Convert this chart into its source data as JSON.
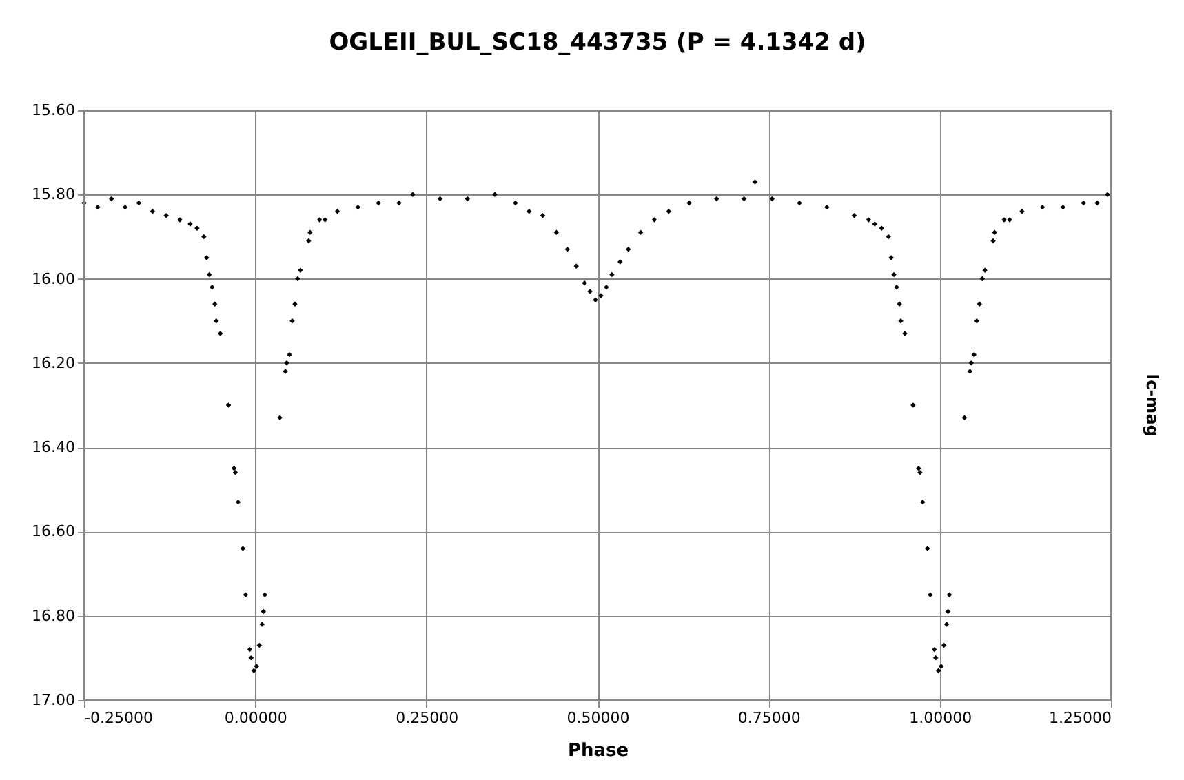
{
  "chart_data": {
    "type": "scatter",
    "title": "OGLEII_BUL_SC18_443735 (P = 4.1342 d)",
    "xlabel": "Phase",
    "ylabel": "Ic-mag",
    "xlim": [
      -0.25,
      1.25
    ],
    "ylim": [
      17.0,
      15.6
    ],
    "xticks": [
      {
        "value": -0.25,
        "label": "-0.25000"
      },
      {
        "value": 0,
        "label": "0.00000"
      },
      {
        "value": 0.25,
        "label": "0.25000"
      },
      {
        "value": 0.5,
        "label": "0.50000"
      },
      {
        "value": 0.75,
        "label": "0.75000"
      },
      {
        "value": 1.0,
        "label": "1.00000"
      },
      {
        "value": 1.25,
        "label": "1.25000"
      }
    ],
    "yticks": [
      {
        "value": 15.6,
        "label": "15.60"
      },
      {
        "value": 15.8,
        "label": "15.80"
      },
      {
        "value": 16.0,
        "label": "16.00"
      },
      {
        "value": 16.2,
        "label": "16.20"
      },
      {
        "value": 16.4,
        "label": "16.40"
      },
      {
        "value": 16.6,
        "label": "16.60"
      },
      {
        "value": 16.8,
        "label": "16.80"
      },
      {
        "value": 17.0,
        "label": "17.00"
      }
    ],
    "grid": true,
    "marker": "diamond",
    "series": [
      {
        "color": "#000000",
        "x": [
          -0.25,
          -0.23,
          -0.21,
          -0.19,
          -0.17,
          -0.15,
          -0.13,
          -0.11,
          -0.095,
          -0.085,
          -0.075,
          -0.071,
          -0.067,
          -0.063,
          -0.059,
          -0.057,
          -0.051,
          -0.039,
          -0.031,
          -0.029,
          -0.025,
          -0.018,
          -0.014,
          -0.008,
          -0.006,
          -0.002,
          0.002,
          0.006,
          0.01,
          0.012,
          0.014,
          0.036,
          0.044,
          0.046,
          0.05,
          0.054,
          0.058,
          0.062,
          0.066,
          0.078,
          0.08,
          0.094,
          0.102,
          0.12,
          0.15,
          0.18,
          0.21,
          0.23,
          0.27,
          0.31,
          0.35,
          0.38,
          0.4,
          0.42,
          0.44,
          0.456,
          0.469,
          0.481,
          0.489,
          0.497,
          0.505,
          0.513,
          0.521,
          0.533,
          0.545,
          0.563,
          0.583,
          0.604,
          0.634,
          0.674,
          0.714,
          0.73,
          0.755,
          0.795,
          0.835,
          0.875,
          0.896,
          0.905,
          0.915,
          0.925,
          0.929,
          0.933,
          0.937,
          0.941,
          0.943,
          0.949,
          0.961,
          0.969,
          0.971,
          0.975,
          0.982,
          0.986,
          0.992,
          0.994,
          0.998,
          1.002,
          1.006,
          1.01,
          1.012,
          1.014,
          1.036,
          1.044,
          1.046,
          1.05,
          1.054,
          1.058,
          1.062,
          1.066,
          1.078,
          1.08,
          1.094,
          1.102,
          1.12,
          1.15,
          1.18,
          1.21,
          1.23,
          1.245
        ],
        "values": [
          15.82,
          15.83,
          15.81,
          15.83,
          15.82,
          15.84,
          15.85,
          15.86,
          15.87,
          15.88,
          15.9,
          15.95,
          15.99,
          16.02,
          16.06,
          16.1,
          16.13,
          16.3,
          16.45,
          16.46,
          16.53,
          16.64,
          16.75,
          16.88,
          16.9,
          16.93,
          16.92,
          16.87,
          16.82,
          16.79,
          16.75,
          16.33,
          16.22,
          16.2,
          16.18,
          16.1,
          16.06,
          16.0,
          15.98,
          15.91,
          15.89,
          15.86,
          15.86,
          15.84,
          15.83,
          15.82,
          15.82,
          15.8,
          15.81,
          15.81,
          15.8,
          15.82,
          15.84,
          15.85,
          15.89,
          15.93,
          15.97,
          16.01,
          16.03,
          16.05,
          16.04,
          16.02,
          15.99,
          15.96,
          15.93,
          15.89,
          15.86,
          15.84,
          15.82,
          15.81,
          15.81,
          15.77,
          15.81,
          15.82,
          15.83,
          15.85,
          15.86,
          15.87,
          15.88,
          15.9,
          15.95,
          15.99,
          16.02,
          16.06,
          16.1,
          16.13,
          16.3,
          16.45,
          16.46,
          16.53,
          16.64,
          16.75,
          16.88,
          16.9,
          16.93,
          16.92,
          16.87,
          16.82,
          16.79,
          16.75,
          16.33,
          16.22,
          16.2,
          16.18,
          16.1,
          16.06,
          16.0,
          15.98,
          15.91,
          15.89,
          15.86,
          15.86,
          15.84,
          15.83,
          15.83,
          15.82,
          15.82,
          15.8
        ]
      }
    ]
  }
}
